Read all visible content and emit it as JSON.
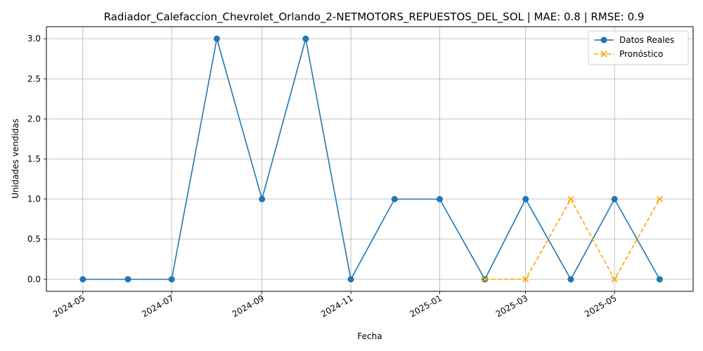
{
  "chart_data": {
    "type": "line",
    "title": "Radiador_Calefaccion_Chevrolet_Orlando_2-NETMOTORS_REPUESTOS_DEL_SOL | MAE: 0.8 | RMSE: 0.9",
    "xlabel": "Fecha",
    "ylabel": "Unidades vendidas",
    "xlim": [
      "2024-04-06",
      "2025-06-24"
    ],
    "ylim": [
      -0.15,
      3.15
    ],
    "x_ticks": [
      "2024-05",
      "2024-07",
      "2024-09",
      "2024-11",
      "2025-01",
      "2025-03",
      "2025-05"
    ],
    "y_ticks": [
      "0.0",
      "0.5",
      "1.0",
      "1.5",
      "2.0",
      "2.5",
      "3.0"
    ],
    "grid": true,
    "legend_position": "top-right",
    "series": [
      {
        "name": "Datos Reales",
        "color": "#1f77b4",
        "marker": "circle",
        "line_style": "solid",
        "x": [
          "2024-05-01",
          "2024-06-01",
          "2024-07-01",
          "2024-08-01",
          "2024-09-01",
          "2024-10-01",
          "2024-11-01",
          "2024-12-01",
          "2025-01-01",
          "2025-02-01",
          "2025-03-01",
          "2025-04-01",
          "2025-05-01",
          "2025-06-01"
        ],
        "values": [
          0,
          0,
          0,
          3,
          1,
          3,
          0,
          1,
          1,
          0,
          1,
          0,
          1,
          0
        ]
      },
      {
        "name": "Pronóstico",
        "color": "#ffa500",
        "marker": "x",
        "line_style": "dashed",
        "x": [
          "2025-02-01",
          "2025-03-01",
          "2025-04-01",
          "2025-05-01",
          "2025-06-01"
        ],
        "values": [
          0,
          0,
          1,
          0,
          1
        ]
      }
    ]
  }
}
